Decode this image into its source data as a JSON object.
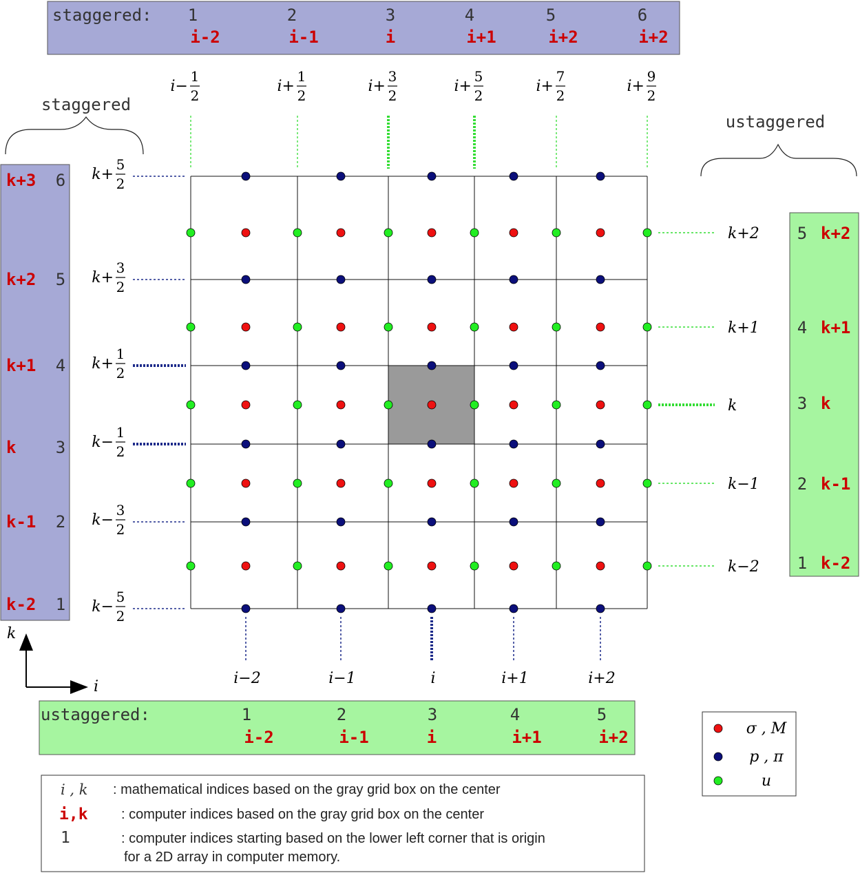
{
  "top_bar": {
    "label": "staggered:",
    "numbers": [
      "1",
      "2",
      "3",
      "4",
      "5",
      "6"
    ],
    "indices": [
      "i-2",
      "i-1",
      "i",
      "i+1",
      "i+2",
      "i+2"
    ],
    "color": "#a6a9d6"
  },
  "bottom_bar": {
    "label": "ustaggered:",
    "numbers": [
      "1",
      "2",
      "3",
      "4",
      "5"
    ],
    "indices": [
      "i-2",
      "i-1",
      "i",
      "i+1",
      "i+2"
    ],
    "color": "#a6f5a0"
  },
  "left_bar": {
    "brace_label": "staggered",
    "rows": [
      {
        "index": "k+3",
        "number": "6"
      },
      {
        "index": "k+2",
        "number": "5"
      },
      {
        "index": "k+1",
        "number": "4"
      },
      {
        "index": "k",
        "number": "3"
      },
      {
        "index": "k-1",
        "number": "2"
      },
      {
        "index": "k-2",
        "number": "1"
      }
    ]
  },
  "right_bar": {
    "brace_label": "ustaggered",
    "rows": [
      {
        "index": "k+2",
        "number": "5"
      },
      {
        "index": "k+1",
        "number": "4"
      },
      {
        "index": "k",
        "number": "3"
      },
      {
        "index": "k-1",
        "number": "2"
      },
      {
        "index": "k-2",
        "number": "1"
      }
    ]
  },
  "top_half_labels": [
    {
      "prefix": "i−",
      "num": "1",
      "den": "2"
    },
    {
      "prefix": "i+",
      "num": "1",
      "den": "2"
    },
    {
      "prefix": "i+",
      "num": "3",
      "den": "2"
    },
    {
      "prefix": "i+",
      "num": "5",
      "den": "2"
    },
    {
      "prefix": "i+",
      "num": "7",
      "den": "2"
    },
    {
      "prefix": "i+",
      "num": "9",
      "den": "2"
    }
  ],
  "left_half_labels": [
    {
      "prefix": "k+",
      "num": "5",
      "den": "2"
    },
    {
      "prefix": "k+",
      "num": "3",
      "den": "2"
    },
    {
      "prefix": "k+",
      "num": "1",
      "den": "2"
    },
    {
      "prefix": "k−",
      "num": "1",
      "den": "2"
    },
    {
      "prefix": "k−",
      "num": "3",
      "den": "2"
    },
    {
      "prefix": "k−",
      "num": "5",
      "den": "2"
    }
  ],
  "right_int_labels": [
    "k+2",
    "k+1",
    "k",
    "k−1",
    "k−2"
  ],
  "bottom_int_labels": [
    "i−2",
    "i−1",
    "i",
    "i+1",
    "i+2"
  ],
  "axes": {
    "x": "i",
    "y": "k"
  },
  "legend": {
    "items": [
      {
        "label": "σ , M",
        "color": "#ee1111"
      },
      {
        "label": "p , π",
        "color": "#0b0f7a"
      },
      {
        "label": "u",
        "color": "#22ee22"
      }
    ]
  },
  "notes": [
    {
      "key": "i , k",
      "key_style": "math",
      "text": ": mathematical indices based on the gray grid box on the center"
    },
    {
      "key": "i,k",
      "key_style": "computer",
      "text": ": computer indices based on the gray grid box on the center"
    },
    {
      "key": "1",
      "key_style": "plain",
      "text": ": computer indices starting based on the lower left corner that is origin",
      "text2": "for a 2D array in computer memory."
    }
  ],
  "colors": {
    "sigma": "#ee1111",
    "p": "#0b0f7a",
    "u": "#22ee22",
    "blue_dash": "#1c2a8a",
    "green_dash": "#33dd33",
    "highlight": "#9a9a9a"
  }
}
